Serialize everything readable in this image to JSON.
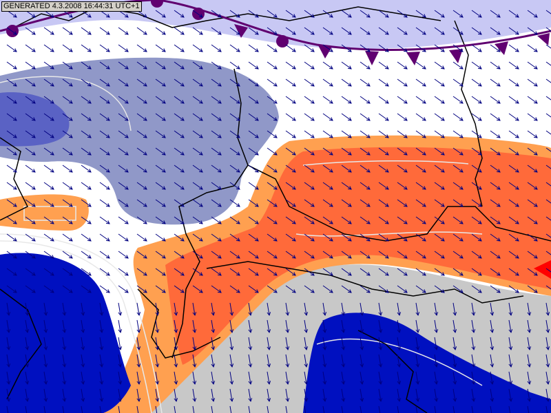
{
  "stamp": {
    "text": "GENERATED 4.3.2008 16:44:31 UTC+1"
  },
  "colors": {
    "background": "#ffffff",
    "light_lavender": "#c8c8f4",
    "slate_blue": "#9098c8",
    "medium_blue": "#5a62c4",
    "deep_blue": "#0010c0",
    "orange": "#ff6a3a",
    "light_orange": "#ffa050",
    "grey": "#c8c8c8",
    "front": "#600070",
    "wind_arrow": "#000080",
    "border": "#000000"
  },
  "layers": {
    "front_type": "occluded-front",
    "wind_arrows": "wind-vectors",
    "highlight_marker": "red-triangle"
  }
}
